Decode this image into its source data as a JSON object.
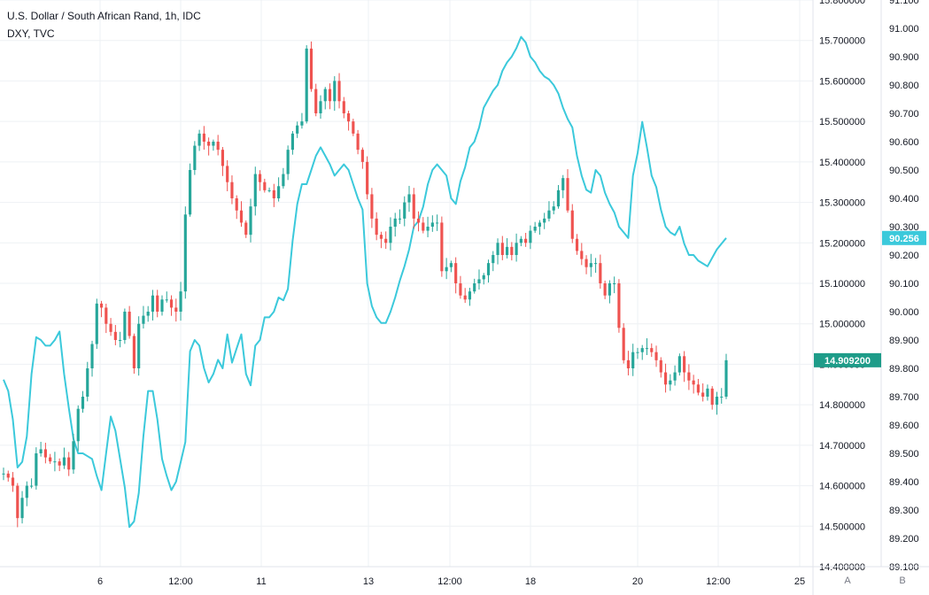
{
  "legend": {
    "main_title": "U.S. Dollar / South African Rand, 1h, IDC",
    "compare_title": "DXY, TVC"
  },
  "colors": {
    "up": "#26a69a",
    "down": "#ef5350",
    "compare_line": "#3bc9db",
    "grid": "#eef1f4",
    "axis_line": "#e0e3eb",
    "main_tag": "#1e9c89",
    "compare_tag": "#3bc9db"
  },
  "chart_data": {
    "type": "line",
    "title": "U.S. Dollar / South African Rand, 1h, IDC",
    "x_tick_labels": [
      "6",
      "12:00",
      "11",
      "13",
      "12:00",
      "18",
      "20",
      "12:00",
      "25"
    ],
    "y_left_price_ticks": [
      "15.800000",
      "15.700000",
      "15.600000",
      "15.500000",
      "15.400000",
      "15.300000",
      "15.200000",
      "15.100000",
      "15.000000",
      "14.900000",
      "14.800000",
      "14.700000",
      "14.600000",
      "14.500000",
      "14.400000"
    ],
    "y_right_price_ticks": [
      "91.100",
      "91.000",
      "90.900",
      "90.800",
      "90.700",
      "90.600",
      "90.500",
      "90.400",
      "90.300",
      "90.200",
      "90.100",
      "90.000",
      "89.900",
      "89.800",
      "89.700",
      "89.600",
      "89.500",
      "89.400",
      "89.300",
      "89.200",
      "89.100"
    ],
    "ylim_main": [
      14.4,
      15.8
    ],
    "ylim_compare": [
      89.1,
      91.1
    ],
    "grid": true,
    "series": [
      {
        "name": "U.S. Dollar / South African Rand, 1h, IDC",
        "style": "candles",
        "last_value": "14.909200",
        "values": [
          14.63,
          14.62,
          14.6,
          14.52,
          14.57,
          14.6,
          14.6,
          14.68,
          14.69,
          14.67,
          14.66,
          14.66,
          14.65,
          14.67,
          14.64,
          14.71,
          14.79,
          14.82,
          14.89,
          14.95,
          15.05,
          15.04,
          15.0,
          14.98,
          14.96,
          14.96,
          15.03,
          14.97,
          14.89,
          15.0,
          15.02,
          15.03,
          15.07,
          15.03,
          15.06,
          15.06,
          15.04,
          15.03,
          15.08,
          15.27,
          15.38,
          15.44,
          15.47,
          15.45,
          15.44,
          15.45,
          15.43,
          15.39,
          15.35,
          15.31,
          15.28,
          15.25,
          15.22,
          15.29,
          15.37,
          15.35,
          15.33,
          15.33,
          15.31,
          15.34,
          15.37,
          15.43,
          15.47,
          15.49,
          15.5,
          15.68,
          15.58,
          15.52,
          15.55,
          15.58,
          15.55,
          15.6,
          15.55,
          15.52,
          15.5,
          15.47,
          15.43,
          15.4,
          15.32,
          15.26,
          15.22,
          15.21,
          15.2,
          15.24,
          15.26,
          15.26,
          15.3,
          15.32,
          15.26,
          15.25,
          15.23,
          15.24,
          15.25,
          15.25,
          15.13,
          15.14,
          15.15,
          15.1,
          15.07,
          15.06,
          15.08,
          15.1,
          15.11,
          15.12,
          15.15,
          15.17,
          15.2,
          15.17,
          15.19,
          15.17,
          15.2,
          15.21,
          15.2,
          15.23,
          15.24,
          15.25,
          15.26,
          15.28,
          15.29,
          15.33,
          15.36,
          15.28,
          15.21,
          15.18,
          15.16,
          15.14,
          15.15,
          15.15,
          15.1,
          15.07,
          15.1,
          15.1,
          14.99,
          14.91,
          14.89,
          14.93,
          14.93,
          14.94,
          14.94,
          14.93,
          14.91,
          14.88,
          14.85,
          14.86,
          14.88,
          14.92,
          14.88,
          14.86,
          14.85,
          14.83,
          14.82,
          14.84,
          14.8,
          14.82,
          14.82,
          14.91
        ]
      },
      {
        "name": "DXY, TVC",
        "style": "line",
        "last_value": "90.256",
        "values": [
          89.76,
          89.72,
          89.62,
          89.45,
          89.47,
          89.56,
          89.78,
          89.91,
          89.9,
          89.88,
          89.88,
          89.9,
          89.93,
          89.78,
          89.66,
          89.55,
          89.5,
          89.5,
          89.49,
          89.48,
          89.42,
          89.37,
          89.5,
          89.63,
          89.58,
          89.48,
          89.38,
          89.24,
          89.26,
          89.36,
          89.56,
          89.72,
          89.72,
          89.62,
          89.48,
          89.42,
          89.37,
          89.4,
          89.47,
          89.54,
          89.86,
          89.9,
          89.88,
          89.8,
          89.75,
          89.78,
          89.83,
          89.8,
          89.92,
          89.82,
          89.87,
          89.92,
          89.78,
          89.74,
          89.88,
          89.9,
          89.98,
          89.98,
          90.0,
          90.05,
          90.04,
          90.08,
          90.25,
          90.38,
          90.45,
          90.45,
          90.5,
          90.55,
          90.58,
          90.55,
          90.52,
          90.48,
          90.5,
          90.52,
          90.5,
          90.45,
          90.4,
          90.36,
          90.1,
          90.02,
          89.98,
          89.96,
          89.96,
          90.0,
          90.05,
          90.11,
          90.16,
          90.22,
          90.3,
          90.32,
          90.37,
          90.45,
          90.5,
          90.52,
          90.5,
          90.48,
          90.4,
          90.38,
          90.46,
          90.51,
          90.58,
          90.6,
          90.65,
          90.72,
          90.75,
          90.78,
          90.8,
          90.85,
          90.88,
          90.9,
          90.93,
          90.97,
          90.95,
          90.9,
          90.88,
          90.85,
          90.83,
          90.82,
          90.8,
          90.77,
          90.72,
          90.68,
          90.65,
          90.55,
          90.48,
          90.43,
          90.42,
          90.5,
          90.48,
          90.42,
          90.38,
          90.35,
          90.3,
          90.28,
          90.26,
          90.48,
          90.56,
          90.67,
          90.58,
          90.48,
          90.44,
          90.36,
          90.3,
          90.28,
          90.27,
          90.3,
          90.24,
          90.2,
          90.2,
          90.18,
          90.17,
          90.16,
          90.19,
          90.22,
          90.24,
          90.26
        ]
      }
    ]
  },
  "axis_buttons": {
    "a_label": "A",
    "b_label": "B"
  }
}
